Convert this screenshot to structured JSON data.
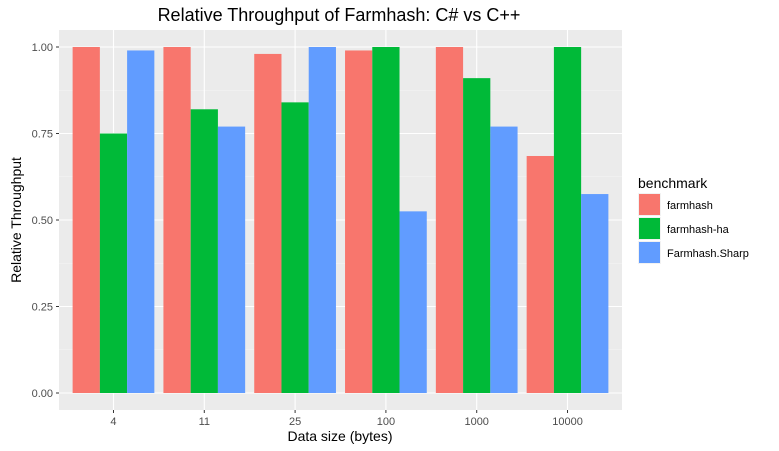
{
  "chart_data": {
    "type": "bar",
    "title": "Relative Throughput of Farmhash: C# vs C++",
    "xlabel": "Data size (bytes)",
    "ylabel": "Relative Throughput",
    "categories": [
      "4",
      "11",
      "25",
      "100",
      "1000",
      "10000"
    ],
    "yticks": [
      "0.00",
      "0.25",
      "0.50",
      "0.75",
      "1.00"
    ],
    "ylim": [
      0,
      1.05
    ],
    "grid": true,
    "legend": {
      "title": "benchmark",
      "position": "right"
    },
    "series": [
      {
        "name": "farmhash",
        "color": "#F8766D",
        "values": [
          1.0,
          1.0,
          0.98,
          0.99,
          1.0,
          0.685
        ]
      },
      {
        "name": "farmhash-ha",
        "color": "#00BA38",
        "values": [
          0.75,
          0.82,
          0.84,
          1.0,
          0.91,
          1.0
        ]
      },
      {
        "name": "Farmhash.Sharp",
        "color": "#619CFF",
        "values": [
          0.99,
          0.77,
          1.0,
          0.525,
          0.77,
          0.575
        ]
      }
    ]
  }
}
